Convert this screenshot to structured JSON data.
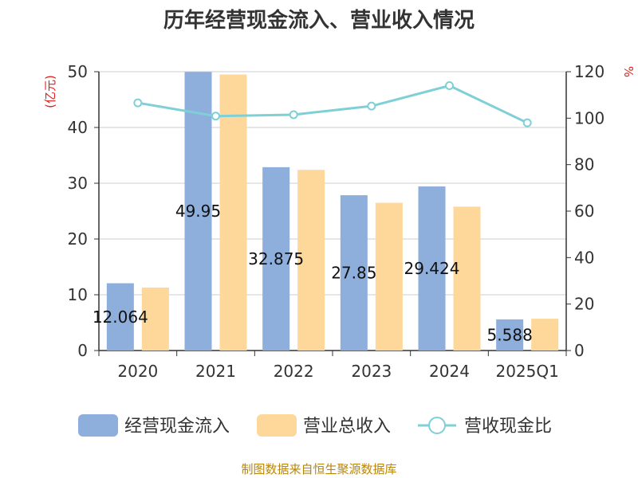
{
  "title": "历年经营现金流入、营业收入情况",
  "source": "制图数据来自恒生聚源数据库",
  "chart_data": {
    "type": "bar",
    "categories": [
      "2020",
      "2021",
      "2022",
      "2023",
      "2024",
      "2025Q1"
    ],
    "y_left": {
      "unit": "(亿元)",
      "range": [
        0,
        50
      ],
      "ticks": [
        0,
        10,
        20,
        30,
        40,
        50
      ]
    },
    "y_right": {
      "unit": "%",
      "range": [
        0,
        120
      ],
      "ticks": [
        0,
        20,
        40,
        60,
        80,
        100,
        120
      ]
    },
    "series": [
      {
        "name": "经营现金流入",
        "type": "bar",
        "axis": "left",
        "color": "#8eaedb",
        "values": [
          12.064,
          49.95,
          32.875,
          27.85,
          29.424,
          5.588
        ],
        "labels": [
          "12.064",
          "49.95",
          "32.875",
          "27.85",
          "29.424",
          "5.588"
        ]
      },
      {
        "name": "营业总收入",
        "type": "bar",
        "axis": "left",
        "color": "#fdd89a",
        "values": [
          11.3,
          49.5,
          32.4,
          26.5,
          25.8,
          5.7
        ]
      },
      {
        "name": "营收现金比",
        "type": "line",
        "axis": "right",
        "color": "#7fd0d6",
        "values": [
          106.6,
          100.9,
          101.5,
          105.2,
          114.0,
          98.0
        ]
      }
    ],
    "grid": true,
    "legend_position": "bottom"
  }
}
